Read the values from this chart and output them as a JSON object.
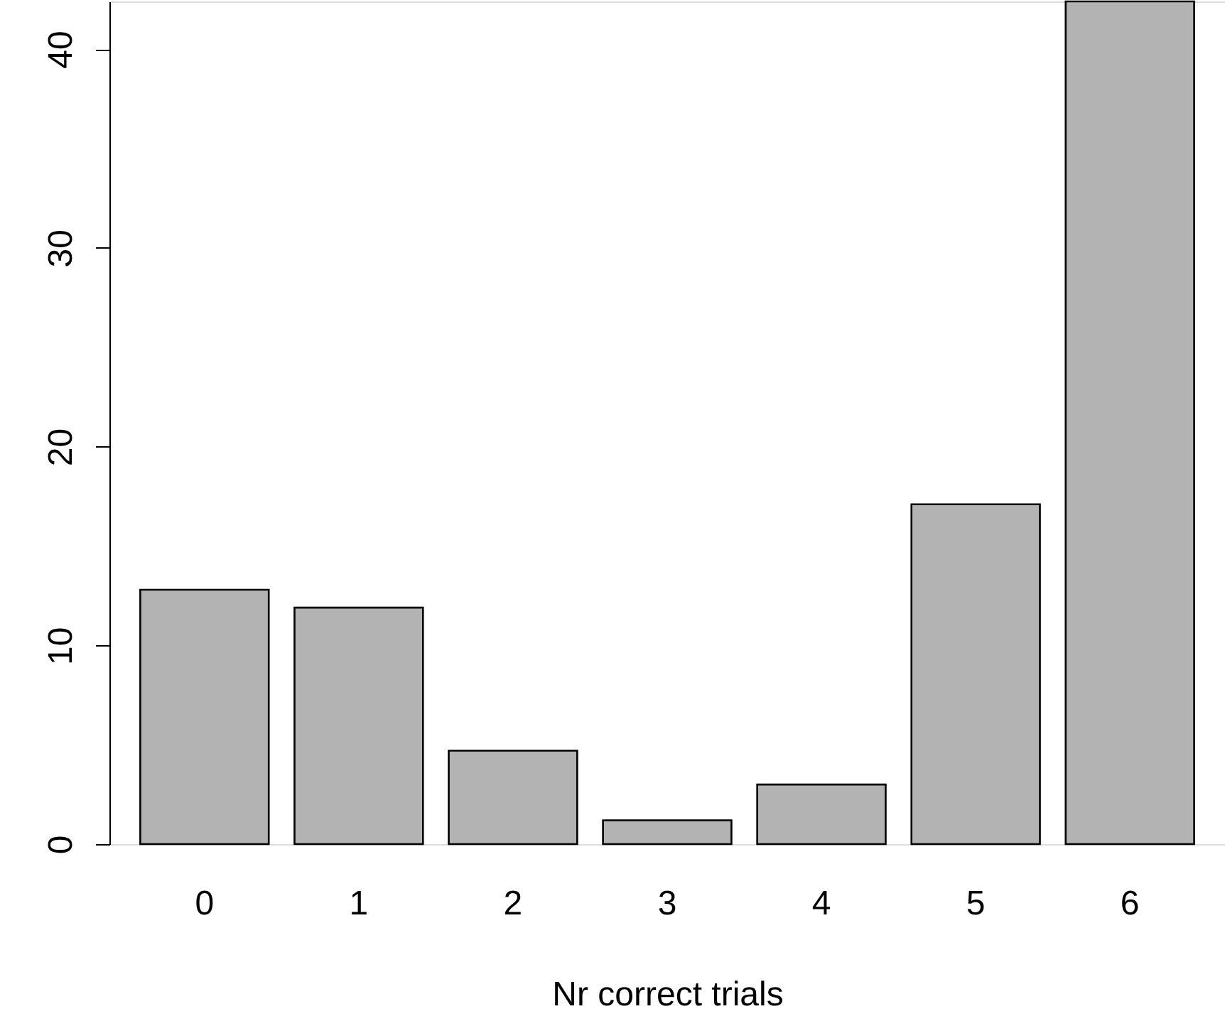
{
  "chart_data": {
    "type": "bar",
    "xlabel": "Nr correct trials",
    "categories": [
      "0",
      "1",
      "2",
      "3",
      "4",
      "5",
      "6"
    ],
    "values": [
      12.8,
      11.9,
      4.7,
      1.2,
      3.0,
      17.1,
      42.4
    ],
    "color": "#b3b3b3",
    "ylim": [
      0,
      42.4
    ],
    "yticks": [
      0,
      10,
      20,
      30,
      40
    ],
    "grid": false
  }
}
